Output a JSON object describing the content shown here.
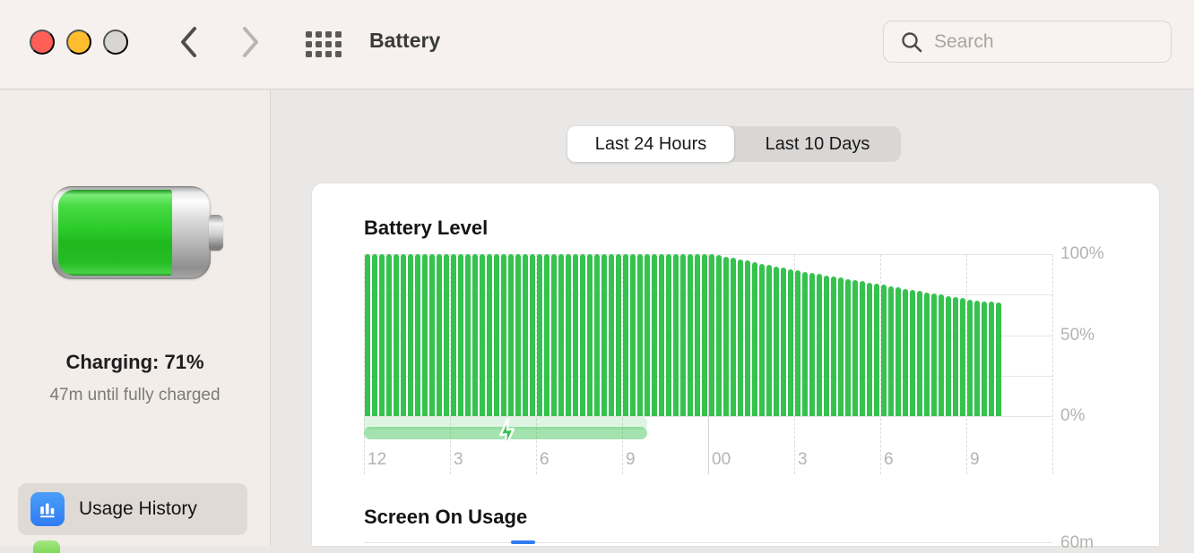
{
  "window": {
    "title": "Battery"
  },
  "toolbar": {
    "search_placeholder": "Search"
  },
  "sidebar": {
    "status_title": "Charging: 71%",
    "status_subtitle": "47m until fully charged",
    "battery_level_percent": 71,
    "items": [
      {
        "label": "Usage History",
        "selected": true,
        "icon": "bar-chart-icon"
      }
    ]
  },
  "tabs": [
    {
      "label": "Last 24 Hours",
      "selected": true
    },
    {
      "label": "Last 10 Days",
      "selected": false
    }
  ],
  "sections": {
    "battery_level_title": "Battery Level",
    "screen_on_title": "Screen On Usage",
    "screen_on_first_tick": "60m"
  },
  "chart_data": {
    "type": "bar",
    "title": "Battery Level",
    "unit": "%",
    "ylim": [
      0,
      100
    ],
    "y_tick_labels": [
      {
        "value": 100,
        "label": "100%"
      },
      {
        "value": 50,
        "label": "50%"
      },
      {
        "value": 0,
        "label": "0%"
      }
    ],
    "h_gridlines_pct": [
      0,
      25,
      50,
      75,
      100
    ],
    "x_span_hours": 24,
    "x_ticks": [
      {
        "hour": 0,
        "label": "12"
      },
      {
        "hour": 3,
        "label": "3"
      },
      {
        "hour": 6,
        "label": "6"
      },
      {
        "hour": 9,
        "label": "9"
      },
      {
        "hour": 12,
        "label": "00"
      },
      {
        "hour": 15,
        "label": "3"
      },
      {
        "hour": 18,
        "label": "6"
      },
      {
        "hour": 21,
        "label": "9"
      }
    ],
    "dashed_gridline_hours": [
      0,
      3,
      6,
      9,
      15,
      18,
      21,
      24
    ],
    "midnight_divider_hour": 12,
    "bar_minutes": 15,
    "values": [
      100,
      100,
      100,
      100,
      100,
      100,
      100,
      100,
      100,
      100,
      100,
      100,
      100,
      100,
      100,
      100,
      100,
      100,
      100,
      100,
      100,
      100,
      100,
      100,
      100,
      100,
      100,
      100,
      100,
      100,
      100,
      100,
      100,
      100,
      100,
      100,
      100,
      100,
      100,
      100,
      100,
      100,
      100,
      100,
      100,
      100,
      100,
      100,
      100,
      99.3,
      98.5,
      97.6,
      96.8,
      95.9,
      95.1,
      94.2,
      93.4,
      92.5,
      91.7,
      90.8,
      90.0,
      89.2,
      88.5,
      87.7,
      87.0,
      86.2,
      85.5,
      84.7,
      84.0,
      83.2,
      82.5,
      81.7,
      81.0,
      80.2,
      79.5,
      78.7,
      78.0,
      77.2,
      76.5,
      75.7,
      75.0,
      74.2,
      73.5,
      72.7,
      72.0,
      71.5,
      71.0,
      70.6,
      70.3
    ],
    "charging_overlay": {
      "start_frac": 0.0,
      "end_frac": 0.412,
      "bolt_frac": 0.207
    }
  },
  "colors": {
    "bar-green": "#35c24e",
    "accent-blue": "#2f7cf3",
    "traffic-red": "#ff5f57",
    "traffic-yellow": "#febc2e",
    "traffic-gray": "#d8d6d4",
    "axis-label": "#b4b3b1",
    "main-bg": "#e9e8e6"
  }
}
